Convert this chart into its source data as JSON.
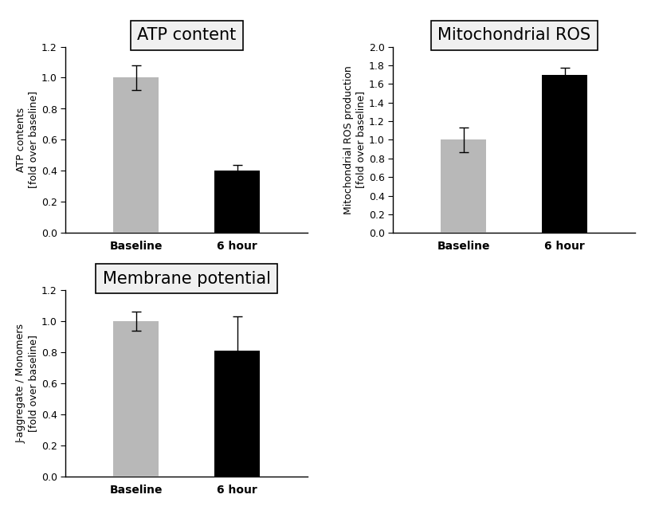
{
  "panels": [
    {
      "title": "ATP content",
      "ylabel_line1": "ATP contents",
      "ylabel_line2": "[fold over baseline]",
      "categories": [
        "Baseline",
        "6 hour"
      ],
      "values": [
        1.0,
        0.4
      ],
      "errors": [
        0.08,
        0.04
      ],
      "colors": [
        "#b8b8b8",
        "#000000"
      ],
      "ylim": [
        0,
        1.2
      ],
      "yticks": [
        0.0,
        0.2,
        0.4,
        0.6,
        0.8,
        1.0,
        1.2
      ]
    },
    {
      "title": "Mitochondrial ROS",
      "ylabel_line1": "Mitochondrial ROS production",
      "ylabel_line2": "[fold over baseline]",
      "categories": [
        "Baseline",
        "6 hour"
      ],
      "values": [
        1.0,
        1.7
      ],
      "errors": [
        0.13,
        0.07
      ],
      "colors": [
        "#b8b8b8",
        "#000000"
      ],
      "ylim": [
        0,
        2.0
      ],
      "yticks": [
        0.0,
        0.2,
        0.4,
        0.6,
        0.8,
        1.0,
        1.2,
        1.4,
        1.6,
        1.8,
        2.0
      ]
    },
    {
      "title": "Membrane potential",
      "ylabel_line1": "J-aggregate / Monomers",
      "ylabel_line2": "[fold over baseline]",
      "categories": [
        "Baseline",
        "6 hour"
      ],
      "values": [
        1.0,
        0.81
      ],
      "errors": [
        0.06,
        0.22
      ],
      "colors": [
        "#b8b8b8",
        "#000000"
      ],
      "ylim": [
        0,
        1.2
      ],
      "yticks": [
        0.0,
        0.2,
        0.4,
        0.6,
        0.8,
        1.0,
        1.2
      ]
    }
  ],
  "bar_width": 0.45,
  "title_fontsize": 15,
  "label_fontsize": 9,
  "tick_fontsize": 9,
  "xtick_fontsize": 10,
  "background_color": "#ffffff",
  "title_box_facecolor": "#f0f0f0",
  "title_box_edgecolor": "#000000"
}
